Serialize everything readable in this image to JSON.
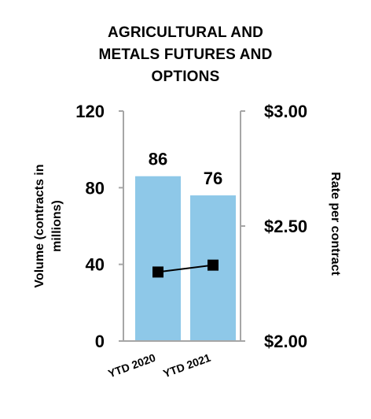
{
  "chart_data": {
    "type": "bar",
    "title_lines": [
      "AGRICULTURAL AND",
      "METALS FUTURES AND",
      "OPTIONS"
    ],
    "categories": [
      "YTD 2020",
      "YTD 2021"
    ],
    "series": [
      {
        "kind": "bar",
        "axis": "left",
        "values": [
          86,
          76
        ],
        "data_labels": [
          "86",
          "76"
        ]
      },
      {
        "kind": "line",
        "axis": "right",
        "values": [
          2.3,
          2.33
        ]
      }
    ],
    "ylabel": "Volume (contracts in millions)",
    "ylabel_lines": [
      "Volume (contracts in",
      "millions)"
    ],
    "y2label": "Rate per contract",
    "ylim": [
      0,
      120
    ],
    "y2lim": [
      2.0,
      3.0
    ],
    "yticks": [
      "0",
      "40",
      "80",
      "120"
    ],
    "y2ticks": [
      "$2.00",
      "$2.50",
      "$3.00"
    ],
    "colors": {
      "bar": "#8EC8E8",
      "axis": "#A6A6A6",
      "line": "#000000",
      "marker": "#000000"
    }
  }
}
